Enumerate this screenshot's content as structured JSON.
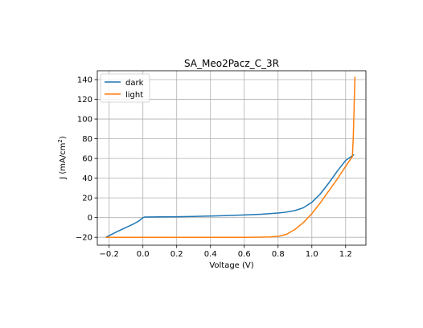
{
  "chart_data": {
    "type": "line",
    "title": "SA_Meo2Pacz_C_3R",
    "xlabel": "Voltage (V)",
    "ylabel_main": "J (mA/cm",
    "ylabel_sup": "2",
    "ylabel_tail": ")",
    "xlim": [
      -0.27,
      1.32
    ],
    "ylim": [
      -28,
      149
    ],
    "xticks": [
      -0.2,
      0.0,
      0.2,
      0.4,
      0.6,
      0.8,
      1.0,
      1.2
    ],
    "xtick_labels": [
      "−0.2",
      "0.0",
      "0.2",
      "0.4",
      "0.6",
      "0.8",
      "1.0",
      "1.2"
    ],
    "yticks": [
      -20,
      0,
      20,
      40,
      60,
      80,
      100,
      120,
      140
    ],
    "ytick_labels": [
      "−20",
      "0",
      "20",
      "40",
      "60",
      "80",
      "100",
      "120",
      "140"
    ],
    "grid": true,
    "legend_position": "top-left",
    "series": [
      {
        "name": "dark",
        "color": "#1f77b4",
        "x": [
          -0.22,
          -0.15,
          -0.1,
          -0.05,
          -0.02,
          0.0,
          0.01,
          0.1,
          0.2,
          0.3,
          0.4,
          0.5,
          0.6,
          0.7,
          0.8,
          0.85,
          0.9,
          0.95,
          1.0,
          1.05,
          1.1,
          1.15,
          1.2,
          1.25
        ],
        "y": [
          -20,
          -14,
          -10,
          -6,
          -3,
          0,
          0.5,
          0.7,
          0.9,
          1.2,
          1.6,
          2.1,
          2.7,
          3.4,
          4.6,
          5.6,
          7.2,
          10.0,
          15.5,
          24,
          35,
          47,
          58,
          64
        ]
      },
      {
        "name": "light",
        "color": "#ff7f0e",
        "x": [
          -0.22,
          -0.1,
          0.0,
          0.2,
          0.4,
          0.6,
          0.7,
          0.75,
          0.8,
          0.85,
          0.9,
          0.95,
          1.0,
          1.05,
          1.1,
          1.15,
          1.2,
          1.22,
          1.24,
          1.245,
          1.25,
          1.255
        ],
        "y": [
          -20,
          -20,
          -20,
          -20,
          -20,
          -20,
          -19.8,
          -19.6,
          -19,
          -17,
          -12,
          -5,
          4,
          15,
          27,
          39,
          52,
          57,
          62,
          80,
          110,
          143
        ]
      }
    ]
  }
}
